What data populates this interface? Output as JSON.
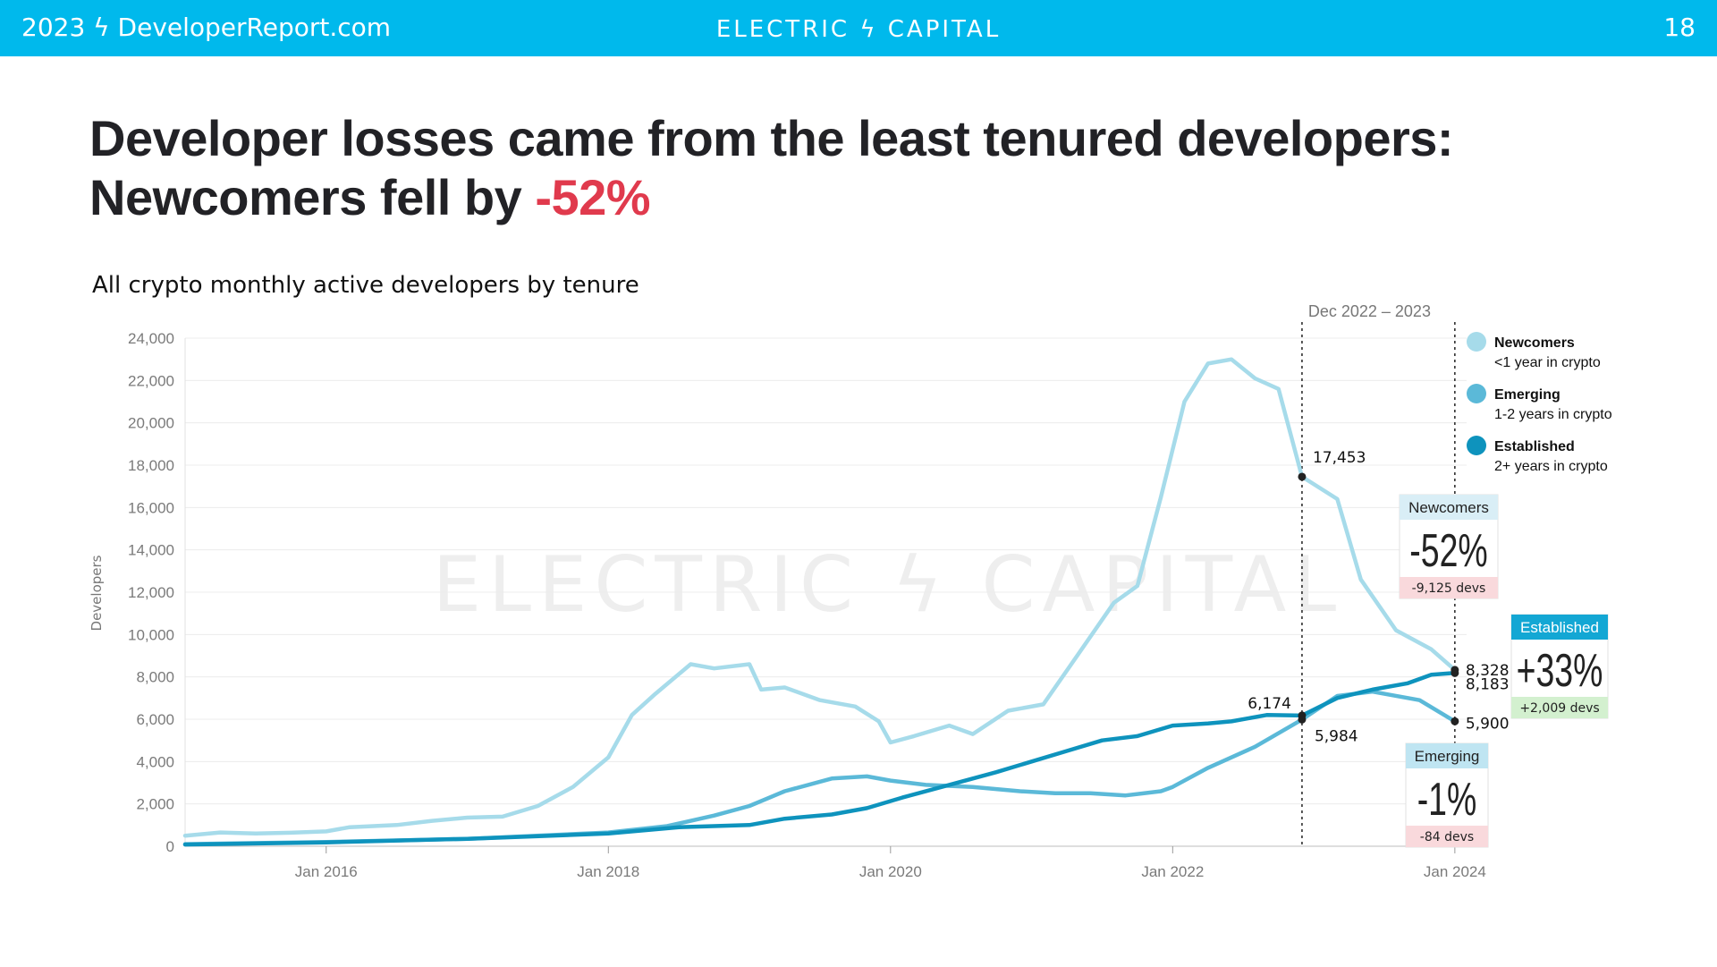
{
  "header": {
    "left_text": "2023 ϟ DeveloperReport.com",
    "brand": "ELECTRIC ϟ CAPITAL",
    "page_number": "18"
  },
  "headline": {
    "line1": "Developer losses came from the least tenured developers:",
    "line2_prefix": "Newcomers fell by ",
    "line2_accent": "-52%",
    "accent_color": "#e03a4d"
  },
  "watermark": "ELECTRIC ϟ CAPITAL",
  "colors": {
    "newcomers": "#a6dbea",
    "emerging": "#5bb9d8",
    "established": "#0e93bd",
    "header": "#00b9ec"
  },
  "chart_data": {
    "type": "line",
    "title": "All crypto monthly active developers by tenure",
    "ylabel": "Developers",
    "xlabel": "",
    "ylim": [
      0,
      24000
    ],
    "xlim": [
      "2015-01",
      "2024-02"
    ],
    "y_ticks": [
      "0",
      "2,000",
      "4,000",
      "6,000",
      "8,000",
      "10,000",
      "12,000",
      "14,000",
      "16,000",
      "18,000",
      "20,000",
      "22,000",
      "24,000"
    ],
    "x_ticks": [
      "Jan 2016",
      "Jan 2018",
      "Jan 2020",
      "Jan 2022",
      "Jan 2024"
    ],
    "grid": "horizontal",
    "legend_position": "top-right",
    "period_label": "Dec 2022 – 2023",
    "period_markers": [
      "2022-12",
      "2024-01"
    ],
    "series": [
      {
        "name": "Newcomers",
        "description": "<1 year in crypto",
        "points": [
          [
            "2015-01",
            500
          ],
          [
            "2015-04",
            650
          ],
          [
            "2015-07",
            600
          ],
          [
            "2015-10",
            640
          ],
          [
            "2016-01",
            700
          ],
          [
            "2016-03",
            900
          ],
          [
            "2016-07",
            1000
          ],
          [
            "2016-10",
            1200
          ],
          [
            "2017-01",
            1350
          ],
          [
            "2017-04",
            1400
          ],
          [
            "2017-07",
            1900
          ],
          [
            "2017-10",
            2800
          ],
          [
            "2018-01",
            4200
          ],
          [
            "2018-03",
            6200
          ],
          [
            "2018-05",
            7200
          ],
          [
            "2018-08",
            8600
          ],
          [
            "2018-10",
            8400
          ],
          [
            "2019-01",
            8600
          ],
          [
            "2019-02",
            7400
          ],
          [
            "2019-04",
            7500
          ],
          [
            "2019-07",
            6900
          ],
          [
            "2019-10",
            6600
          ],
          [
            "2019-12",
            5900
          ],
          [
            "2020-01",
            4900
          ],
          [
            "2020-03",
            5200
          ],
          [
            "2020-06",
            5700
          ],
          [
            "2020-08",
            5300
          ],
          [
            "2020-11",
            6400
          ],
          [
            "2021-02",
            6700
          ],
          [
            "2021-05",
            9100
          ],
          [
            "2021-08",
            11500
          ],
          [
            "2021-10",
            12300
          ],
          [
            "2021-12",
            16500
          ],
          [
            "2022-02",
            21000
          ],
          [
            "2022-04",
            22800
          ],
          [
            "2022-06",
            23000
          ],
          [
            "2022-08",
            22100
          ],
          [
            "2022-10",
            21600
          ],
          [
            "2022-12",
            17453
          ],
          [
            "2023-03",
            16400
          ],
          [
            "2023-05",
            12600
          ],
          [
            "2023-08",
            10200
          ],
          [
            "2023-11",
            9300
          ],
          [
            "2024-01",
            8328
          ]
        ]
      },
      {
        "name": "Emerging",
        "description": "1-2 years in crypto",
        "points": [
          [
            "2015-01",
            100
          ],
          [
            "2016-01",
            200
          ],
          [
            "2017-01",
            350
          ],
          [
            "2018-01",
            650
          ],
          [
            "2018-06",
            950
          ],
          [
            "2018-10",
            1450
          ],
          [
            "2019-01",
            1900
          ],
          [
            "2019-04",
            2600
          ],
          [
            "2019-08",
            3200
          ],
          [
            "2019-11",
            3300
          ],
          [
            "2020-01",
            3100
          ],
          [
            "2020-04",
            2900
          ],
          [
            "2020-08",
            2800
          ],
          [
            "2020-12",
            2600
          ],
          [
            "2021-03",
            2500
          ],
          [
            "2021-06",
            2500
          ],
          [
            "2021-09",
            2400
          ],
          [
            "2021-12",
            2600
          ],
          [
            "2022-01",
            2800
          ],
          [
            "2022-04",
            3700
          ],
          [
            "2022-08",
            4700
          ],
          [
            "2022-12",
            5984
          ],
          [
            "2023-03",
            7100
          ],
          [
            "2023-06",
            7300
          ],
          [
            "2023-10",
            6900
          ],
          [
            "2024-01",
            5900
          ]
        ]
      },
      {
        "name": "Established",
        "description": "2+ years in crypto",
        "points": [
          [
            "2015-01",
            80
          ],
          [
            "2016-01",
            180
          ],
          [
            "2017-01",
            350
          ],
          [
            "2018-01",
            600
          ],
          [
            "2018-07",
            900
          ],
          [
            "2019-01",
            1000
          ],
          [
            "2019-04",
            1300
          ],
          [
            "2019-08",
            1500
          ],
          [
            "2019-11",
            1800
          ],
          [
            "2020-02",
            2300
          ],
          [
            "2020-06",
            2900
          ],
          [
            "2020-10",
            3500
          ],
          [
            "2021-01",
            4000
          ],
          [
            "2021-04",
            4500
          ],
          [
            "2021-07",
            5000
          ],
          [
            "2021-10",
            5200
          ],
          [
            "2022-01",
            5700
          ],
          [
            "2022-04",
            5800
          ],
          [
            "2022-06",
            5900
          ],
          [
            "2022-09",
            6200
          ],
          [
            "2022-12",
            6174
          ],
          [
            "2023-03",
            7000
          ],
          [
            "2023-06",
            7400
          ],
          [
            "2023-09",
            7700
          ],
          [
            "2023-11",
            8100
          ],
          [
            "2024-01",
            8183
          ]
        ]
      }
    ],
    "point_labels": [
      {
        "date": "2022-12",
        "value": 17453,
        "text": "17,453"
      },
      {
        "date": "2022-12",
        "value": 6174,
        "text": "6,174"
      },
      {
        "date": "2022-12",
        "value": 5984,
        "text": "5,984"
      },
      {
        "date": "2024-01",
        "value": 8328,
        "text": "8,328"
      },
      {
        "date": "2024-01",
        "value": 8183,
        "text": "8,183"
      },
      {
        "date": "2024-01",
        "value": 5900,
        "text": "5,900"
      }
    ],
    "change_boxes": [
      {
        "series": "Newcomers",
        "change": "-52%",
        "devs": "-9,125 devs",
        "header_color": "#d9eef6",
        "foot_color": "#f9d9dc",
        "header_text": "dark"
      },
      {
        "series": "Established",
        "change": "+33%",
        "devs": "+2,009 devs",
        "header_color": "#13a7d4",
        "foot_color": "#d3f0cf",
        "header_text": "light"
      },
      {
        "series": "Emerging",
        "change": "-1%",
        "devs": "-84 devs",
        "header_color": "#bfe5f2",
        "foot_color": "#f9d9dc",
        "header_text": "dark"
      }
    ]
  }
}
